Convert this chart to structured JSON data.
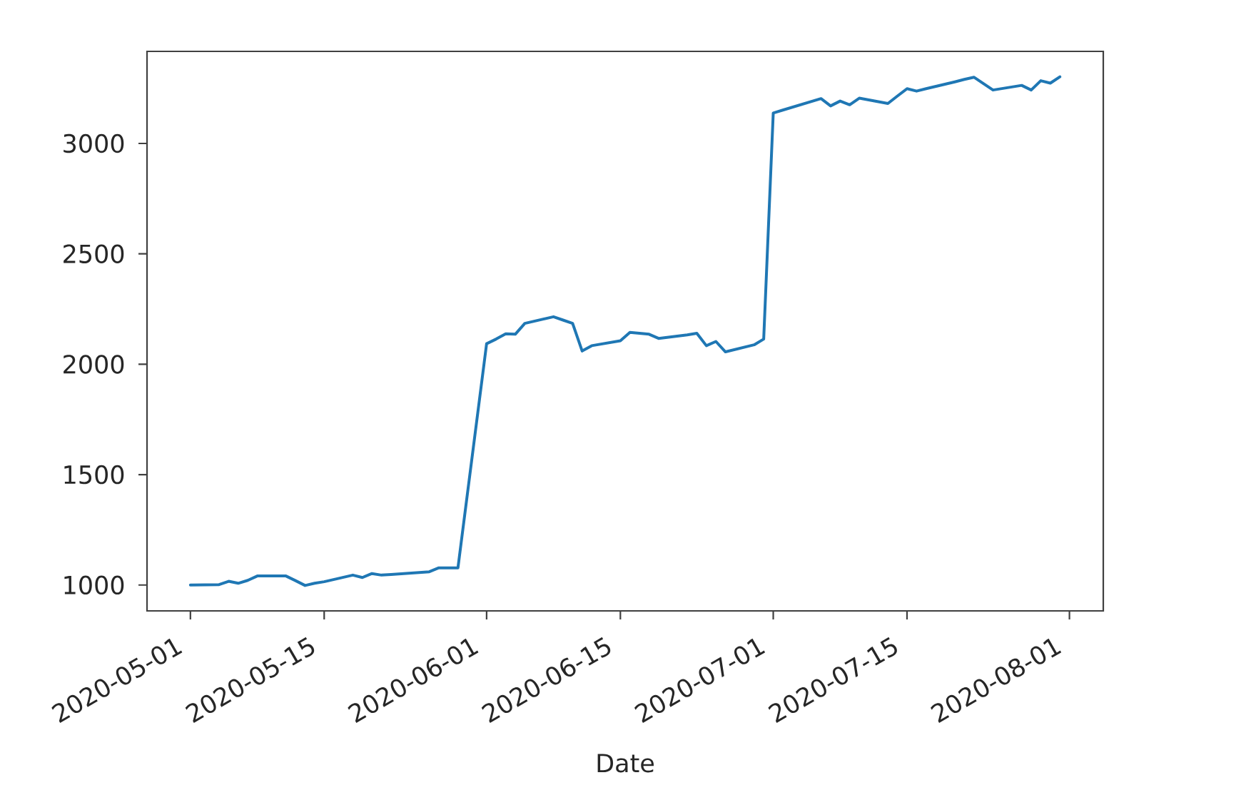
{
  "chart_data": {
    "type": "line",
    "xlabel": "Date",
    "x": [
      "2020-05-01",
      "2020-05-04",
      "2020-05-05",
      "2020-05-06",
      "2020-05-07",
      "2020-05-08",
      "2020-05-11",
      "2020-05-12",
      "2020-05-13",
      "2020-05-14",
      "2020-05-15",
      "2020-05-18",
      "2020-05-19",
      "2020-05-20",
      "2020-05-21",
      "2020-05-22",
      "2020-05-26",
      "2020-05-27",
      "2020-05-28",
      "2020-05-29",
      "2020-06-01",
      "2020-06-02",
      "2020-06-03",
      "2020-06-04",
      "2020-06-05",
      "2020-06-08",
      "2020-06-09",
      "2020-06-10",
      "2020-06-11",
      "2020-06-12",
      "2020-06-15",
      "2020-06-16",
      "2020-06-17",
      "2020-06-18",
      "2020-06-19",
      "2020-06-22",
      "2020-06-23",
      "2020-06-24",
      "2020-06-25",
      "2020-06-26",
      "2020-06-29",
      "2020-06-30",
      "2020-07-01",
      "2020-07-02",
      "2020-07-06",
      "2020-07-07",
      "2020-07-08",
      "2020-07-09",
      "2020-07-10",
      "2020-07-13",
      "2020-07-14",
      "2020-07-15",
      "2020-07-16",
      "2020-07-17",
      "2020-07-20",
      "2020-07-21",
      "2020-07-22",
      "2020-07-23",
      "2020-07-24",
      "2020-07-27",
      "2020-07-28",
      "2020-07-29",
      "2020-07-30",
      "2020-07-31"
    ],
    "values": [
      1000,
      1002,
      1017,
      1008,
      1021,
      1041,
      1041,
      1020,
      998,
      1008,
      1015,
      1045,
      1034,
      1052,
      1045,
      1048,
      1060,
      1078,
      1078,
      1078,
      2093,
      2114,
      2138,
      2136,
      2185,
      2215,
      2200,
      2185,
      2060,
      2084,
      2106,
      2144,
      2140,
      2136,
      2117,
      2133,
      2140,
      2084,
      2103,
      2056,
      2088,
      2114,
      3138,
      3151,
      3203,
      3170,
      3192,
      3175,
      3205,
      3181,
      3215,
      3248,
      3237,
      3248,
      3279,
      3290,
      3300,
      3271,
      3242,
      3263,
      3242,
      3284,
      3273,
      3302
    ],
    "color": "#1f77b4",
    "xlim": [
      "2020-04-26T11:00",
      "2020-08-04T13:00"
    ],
    "xticks": [
      "2020-05-01",
      "2020-05-15",
      "2020-06-01",
      "2020-06-15",
      "2020-07-01",
      "2020-07-15",
      "2020-08-01"
    ],
    "ylim": [
      883,
      3417
    ],
    "yticks": [
      1000,
      1500,
      2000,
      2500,
      3000
    ]
  }
}
